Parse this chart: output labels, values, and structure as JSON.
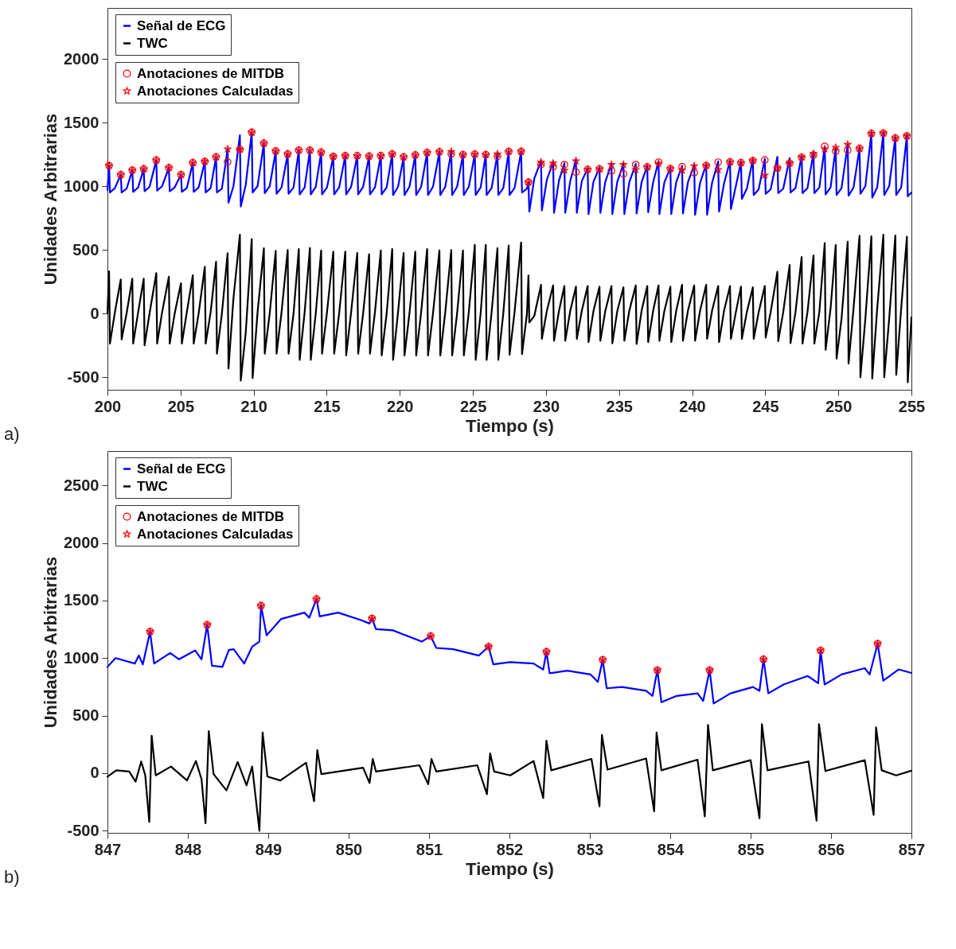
{
  "chart_data": [
    {
      "type": "line",
      "xlabel": "Tiempo (s)",
      "ylabel": "Unidades Arbitrarias",
      "annotations": [
        "a)"
      ],
      "legend": "top left",
      "marker": "none",
      "line_style": "solid",
      "xlim": [
        200,
        255
      ],
      "xticks": [
        200,
        205,
        210,
        215,
        220,
        225,
        230,
        235,
        240,
        245,
        250,
        255
      ],
      "ylim": [
        -600,
        2400
      ],
      "yticks": [
        -500,
        0,
        500,
        1000,
        1500,
        2000
      ],
      "x": [
        200,
        200.11,
        200.17,
        200.51,
        200.91,
        200.97,
        201.31,
        201.7,
        201.76,
        202.1,
        202.48,
        202.54,
        202.88,
        203.34,
        203.4,
        203.74,
        204.2,
        204.26,
        204.6,
        205.03,
        205.09,
        205.43,
        205.84,
        205.9,
        206.24,
        206.66,
        206.72,
        207.06,
        207.43,
        207.49,
        207.83,
        208.22,
        208.28,
        208.62,
        209.06,
        209.12,
        209.46,
        209.87,
        209.93,
        210.27,
        210.7,
        210.76,
        211.1,
        211.51,
        211.57,
        211.91,
        212.33,
        212.39,
        212.73,
        213.09,
        213.15,
        213.49,
        213.85,
        213.91,
        214.25,
        214.62,
        214.68,
        215.02,
        215.45,
        215.51,
        215.85,
        216.27,
        216.33,
        216.67,
        217.09,
        217.15,
        217.49,
        217.9,
        217.96,
        218.3,
        218.7,
        218.76,
        219.1,
        219.48,
        219.54,
        219.88,
        220.26,
        220.32,
        220.66,
        221.06,
        221.12,
        221.46,
        221.87,
        221.93,
        222.27,
        222.71,
        222.77,
        223.11,
        223.52,
        223.58,
        223.92,
        224.32,
        224.38,
        224.72,
        225.13,
        225.19,
        225.53,
        225.88,
        225.94,
        226.28,
        226.68,
        226.74,
        227.08,
        227.45,
        227.51,
        227.85,
        228.3,
        228.36,
        228.7,
        228.8,
        228.86,
        229.2,
        229.66,
        229.72,
        230.06,
        230.49,
        230.55,
        230.89,
        231.26,
        231.32,
        231.66,
        232.05,
        232.11,
        232.45,
        232.85,
        232.91,
        233.25,
        233.66,
        233.72,
        234.06,
        234.48,
        234.54,
        234.88,
        235.3,
        235.36,
        235.7,
        236.14,
        236.2,
        236.54,
        236.93,
        236.99,
        237.33,
        237.7,
        237.76,
        238.1,
        238.51,
        238.57,
        238.91,
        239.31,
        239.37,
        239.71,
        240.14,
        240.2,
        240.54,
        240.96,
        241.02,
        241.36,
        241.78,
        241.84,
        242.18,
        242.59,
        242.65,
        242.99,
        243.34,
        243.4,
        243.74,
        244.15,
        244.21,
        244.55,
        244.97,
        245.03,
        245.37,
        245.83,
        245.89,
        246.23,
        246.67,
        246.73,
        247.07,
        247.49,
        247.55,
        247.89,
        248.3,
        248.36,
        248.7,
        249.07,
        249.13,
        249.47,
        249.82,
        249.88,
        250.22,
        250.64,
        250.7,
        251.04,
        251.45,
        251.51,
        251.85,
        252.26,
        252.32,
        252.66,
        253.08,
        253.14,
        253.48,
        253.9,
        253.96,
        254.3,
        254.69,
        254.75,
        255
      ],
      "series": [
        {
          "name": "Señal de ECG",
          "color": "#0000ff",
          "values": [
            970,
            1161,
            950,
            985,
            1090,
            950,
            980,
            1125,
            955,
            990,
            1135,
            960,
            995,
            1204,
            965,
            1000,
            1145,
            960,
            990,
            1090,
            955,
            985,
            1184,
            955,
            990,
            1194,
            950,
            985,
            1229,
            950,
            980,
            1292,
            870,
            1000,
            1400,
            840,
            1010,
            1423,
            950,
            1000,
            1337,
            945,
            1000,
            1276,
            940,
            990,
            1253,
            940,
            990,
            1282,
            935,
            990,
            1282,
            935,
            995,
            1267,
            935,
            990,
            1233,
            935,
            990,
            1239,
            935,
            995,
            1239,
            935,
            995,
            1235,
            935,
            990,
            1239,
            935,
            990,
            1253,
            930,
            995,
            1229,
            930,
            995,
            1245,
            930,
            995,
            1264,
            930,
            995,
            1270,
            930,
            995,
            1272,
            930,
            995,
            1247,
            930,
            995,
            1251,
            930,
            990,
            1247,
            930,
            985,
            1253,
            930,
            985,
            1272,
            930,
            985,
            1273,
            950,
            980,
            1031,
            800,
            1060,
            1200,
            810,
            1050,
            1190,
            790,
            1045,
            1180,
            790,
            1040,
            1205,
            790,
            1040,
            1140,
            780,
            1035,
            1145,
            790,
            1035,
            1175,
            780,
            1035,
            1175,
            780,
            1030,
            1175,
            785,
            1030,
            1160,
            795,
            1030,
            1195,
            780,
            1030,
            1145,
            780,
            1030,
            1160,
            785,
            1030,
            1165,
            775,
            1025,
            1170,
            775,
            1025,
            1195,
            800,
            1020,
            1200,
            820,
            1000,
            1190,
            900,
            980,
            1210,
            930,
            975,
            1215,
            940,
            975,
            1230,
            945,
            980,
            1220,
            950,
            985,
            1240,
            945,
            985,
            1265,
            945,
            990,
            1312,
            935,
            990,
            1304,
            930,
            985,
            1327,
            925,
            990,
            1300,
            940,
            1000,
            1420,
            910,
            990,
            1420,
            930,
            1000,
            1385,
            930,
            990,
            1400,
            920,
            950
          ]
        },
        {
          "name": "TWC",
          "color": "#000000",
          "values": [
            0,
            331,
            -237,
            10,
            267,
            -204,
            0,
            273,
            -237,
            10,
            273,
            -251,
            0,
            316,
            -237,
            10,
            288,
            -237,
            0,
            237,
            -237,
            10,
            300,
            -237,
            0,
            367,
            -237,
            10,
            406,
            -316,
            0,
            473,
            -433,
            120,
            618,
            -528,
            -150,
            584,
            -508,
            10,
            512,
            -316,
            0,
            492,
            -316,
            10,
            498,
            -316,
            0,
            506,
            -365,
            10,
            514,
            -365,
            0,
            494,
            -316,
            10,
            486,
            -316,
            0,
            486,
            -330,
            10,
            475,
            -316,
            0,
            465,
            -316,
            10,
            494,
            -330,
            0,
            506,
            -365,
            10,
            475,
            -330,
            0,
            486,
            -330,
            10,
            506,
            -330,
            0,
            494,
            -330,
            10,
            498,
            -330,
            0,
            494,
            -330,
            10,
            539,
            -365,
            0,
            539,
            -365,
            10,
            512,
            -365,
            0,
            533,
            -325,
            10,
            557,
            -320,
            0,
            298,
            -71,
            -20,
            224,
            -200,
            20,
            220,
            -215,
            20,
            215,
            -215,
            20,
            210,
            -200,
            20,
            215,
            -225,
            20,
            210,
            -215,
            20,
            215,
            -235,
            20,
            205,
            -215,
            20,
            220,
            -240,
            20,
            215,
            -225,
            20,
            220,
            -215,
            20,
            210,
            -225,
            20,
            225,
            -215,
            20,
            220,
            -215,
            20,
            225,
            -200,
            20,
            215,
            -225,
            20,
            215,
            -200,
            10,
            210,
            -200,
            10,
            205,
            -200,
            10,
            215,
            -190,
            10,
            327,
            -218,
            10,
            380,
            -233,
            10,
            443,
            -237,
            10,
            455,
            -237,
            10,
            553,
            -286,
            40,
            537,
            -355,
            -40,
            563,
            -394,
            40,
            610,
            -502,
            -40,
            606,
            -512,
            40,
            618,
            -502,
            -40,
            612,
            -482,
            40,
            602,
            -541,
            -30
          ]
        },
        {
          "name": "Anotaciones de MITDB",
          "type": "scatter",
          "marker": "circle",
          "color": "#ff0000",
          "x": [
            200.11,
            200.91,
            201.7,
            202.48,
            203.34,
            204.2,
            205.03,
            205.84,
            206.66,
            207.43,
            208.22,
            209.06,
            209.87,
            210.7,
            211.51,
            212.33,
            213.09,
            213.85,
            214.62,
            215.45,
            216.27,
            217.09,
            217.9,
            218.7,
            219.48,
            220.26,
            221.06,
            221.87,
            222.71,
            223.52,
            224.32,
            225.13,
            225.88,
            226.68,
            227.45,
            228.3,
            228.8,
            229.66,
            230.49,
            231.26,
            232.05,
            232.85,
            233.66,
            234.48,
            235.3,
            236.14,
            236.93,
            237.7,
            238.51,
            239.31,
            240.14,
            240.96,
            241.78,
            242.59,
            243.34,
            244.15,
            244.97,
            245.83,
            246.67,
            247.49,
            248.3,
            249.07,
            249.82,
            250.64,
            251.45,
            252.26,
            253.08,
            253.9,
            254.69
          ],
          "values": [
            1161,
            1090,
            1125,
            1135,
            1204,
            1145,
            1090,
            1184,
            1194,
            1229,
            1190,
            1288,
            1423,
            1337,
            1276,
            1253,
            1282,
            1282,
            1267,
            1233,
            1239,
            1239,
            1235,
            1239,
            1253,
            1229,
            1245,
            1264,
            1270,
            1253,
            1247,
            1251,
            1247,
            1233,
            1272,
            1273,
            1031,
            1169,
            1153,
            1169,
            1110,
            1131,
            1135,
            1120,
            1096,
            1169,
            1151,
            1188,
            1137,
            1153,
            1106,
            1161,
            1188,
            1190,
            1184,
            1200,
            1206,
            1141,
            1180,
            1227,
            1243,
            1312,
            1276,
            1282,
            1296,
            1414,
            1416,
            1378,
            1394
          ]
        },
        {
          "name": "Anotaciones Calculadas",
          "type": "scatter",
          "marker": "star",
          "color": "#ff0000",
          "x": [
            200.11,
            200.91,
            201.7,
            202.48,
            203.34,
            204.2,
            205.03,
            205.84,
            206.66,
            207.43,
            208.22,
            209.06,
            209.87,
            210.7,
            211.51,
            212.33,
            213.09,
            213.85,
            214.62,
            215.45,
            216.27,
            217.09,
            217.9,
            218.7,
            219.48,
            220.26,
            221.06,
            221.87,
            222.71,
            223.52,
            224.32,
            225.13,
            225.88,
            226.68,
            227.45,
            228.3,
            228.8,
            229.66,
            230.49,
            231.26,
            232.05,
            232.85,
            233.66,
            234.48,
            235.3,
            236.14,
            236.93,
            237.7,
            238.51,
            239.31,
            240.14,
            240.96,
            241.78,
            242.59,
            243.34,
            244.15,
            244.97,
            245.83,
            246.67,
            247.49,
            248.3,
            249.07,
            249.82,
            250.64,
            251.45,
            252.26,
            253.08,
            253.9,
            254.69
          ],
          "values": [
            1161,
            1090,
            1125,
            1135,
            1204,
            1145,
            1090,
            1184,
            1194,
            1229,
            1292,
            1288,
            1423,
            1337,
            1276,
            1253,
            1282,
            1282,
            1267,
            1233,
            1239,
            1239,
            1235,
            1239,
            1253,
            1229,
            1245,
            1264,
            1270,
            1272,
            1247,
            1251,
            1247,
            1253,
            1272,
            1273,
            1031,
            1188,
            1180,
            1125,
            1198,
            1131,
            1135,
            1169,
            1169,
            1129,
            1151,
            1178,
            1137,
            1125,
            1159,
            1161,
            1129,
            1190,
            1184,
            1200,
            1086,
            1141,
            1180,
            1227,
            1255,
            1292,
            1304,
            1327,
            1296,
            1414,
            1416,
            1378,
            1394
          ]
        }
      ]
    },
    {
      "type": "line",
      "xlabel": "Tiempo (s)",
      "ylabel": "Unidades Arbitrarias",
      "annotations": [
        "b)"
      ],
      "legend": "top left",
      "marker": "none",
      "line_style": "solid",
      "xlim": [
        847,
        857
      ],
      "xticks": [
        847,
        848,
        849,
        850,
        851,
        852,
        853,
        854,
        855,
        856,
        857
      ],
      "ylim": [
        -520,
        2800
      ],
      "yticks": [
        -500,
        0,
        500,
        1000,
        1500,
        2000,
        2500
      ],
      "series": [
        {
          "name": "Señal de ECG",
          "color": "#0000ff",
          "x": [
            847,
            847.1,
            847.34,
            847.39,
            847.44,
            847.53,
            847.58,
            847.78,
            847.89,
            848.09,
            848.17,
            848.24,
            848.3,
            848.43,
            848.51,
            848.57,
            848.7,
            848.8,
            848.89,
            848.91,
            848.98,
            849.16,
            849.45,
            849.51,
            849.6,
            849.64,
            849.87,
            850.16,
            850.26,
            850.29,
            850.34,
            850.55,
            850.91,
            851.02,
            851.09,
            851.3,
            851.62,
            851.74,
            851.8,
            852.01,
            852.3,
            852.42,
            852.46,
            852.5,
            852.72,
            853.01,
            853.1,
            853.16,
            853.21,
            853.4,
            853.7,
            853.78,
            853.84,
            853.89,
            854.08,
            854.34,
            854.41,
            854.49,
            854.54,
            854.75,
            855.03,
            855.11,
            855.16,
            855.22,
            855.41,
            855.71,
            855.84,
            855.87,
            855.92,
            856.13,
            856.42,
            856.48,
            856.58,
            856.65,
            856.84,
            857
          ],
          "values": [
            923,
            1000,
            952,
            1022,
            945,
            1230,
            952,
            1044,
            989,
            1066,
            989,
            1289,
            934,
            923,
            1070,
            1077,
            952,
            1099,
            1143,
            1456,
            1197,
            1340,
            1395,
            1351,
            1513,
            1362,
            1395,
            1329,
            1300,
            1344,
            1252,
            1241,
            1143,
            1191,
            1088,
            1077,
            1022,
            1099,
            945,
            965,
            952,
            900,
            1055,
            868,
            890,
            857,
            792,
            985,
            737,
            748,
            715,
            671,
            895,
            616,
            671,
            693,
            627,
            895,
            605,
            693,
            748,
            715,
            989,
            693,
            770,
            844,
            781,
            1066,
            770,
            857,
            912,
            857,
            1125,
            803,
            901,
            870
          ]
        },
        {
          "name": "TWC",
          "color": "#000000",
          "x": [
            847,
            847.11,
            847.27,
            847.35,
            847.42,
            847.47,
            847.52,
            847.55,
            847.6,
            847.79,
            847.99,
            848.1,
            848.17,
            848.22,
            848.26,
            848.32,
            848.48,
            848.62,
            848.73,
            848.8,
            848.89,
            848.93,
            848.99,
            849.15,
            849.47,
            849.57,
            849.61,
            849.66,
            850.18,
            850.26,
            850.3,
            850.34,
            850.88,
            850.99,
            851.03,
            851.09,
            851.6,
            851.72,
            851.76,
            851.81,
            852.01,
            852.3,
            852.42,
            852.46,
            852.52,
            853.02,
            853.12,
            853.15,
            853.22,
            853.7,
            853.8,
            853.83,
            853.89,
            854.34,
            854.43,
            854.47,
            854.53,
            855,
            855.11,
            855.14,
            855.21,
            855.72,
            855.82,
            855.85,
            855.93,
            856.42,
            856.53,
            856.56,
            856.63,
            856.81,
            857
          ],
          "values": [
            -31,
            24,
            13,
            -75,
            101,
            -20,
            -425,
            325,
            -20,
            57,
            -64,
            105,
            -53,
            -436,
            364,
            -9,
            -151,
            96,
            -107,
            57,
            -502,
            353,
            -31,
            -64,
            90,
            -245,
            199,
            -9,
            46,
            -86,
            123,
            13,
            68,
            -97,
            123,
            13,
            68,
            -184,
            171,
            13,
            -20,
            105,
            -217,
            281,
            24,
            123,
            -289,
            331,
            30,
            127,
            -333,
            353,
            24,
            116,
            -377,
            419,
            24,
            112,
            -393,
            426,
            24,
            101,
            -414,
            426,
            18,
            112,
            -364,
            397,
            24,
            -20,
            20
          ]
        },
        {
          "name": "Anotaciones de MITDB",
          "type": "scatter",
          "marker": "circle",
          "color": "#ff0000",
          "x": [
            847.53,
            848.24,
            848.91,
            849.6,
            850.29,
            851.02,
            851.74,
            852.46,
            853.16,
            853.84,
            854.49,
            855.16,
            855.87,
            856.58
          ],
          "values": [
            1230,
            1289,
            1456,
            1513,
            1344,
            1191,
            1099,
            1055,
            985,
            895,
            895,
            989,
            1066,
            1125
          ]
        },
        {
          "name": "Anotaciones Calculadas",
          "type": "scatter",
          "marker": "star",
          "color": "#ff0000",
          "x": [
            847.53,
            848.24,
            848.91,
            849.6,
            850.29,
            851.02,
            851.74,
            852.46,
            853.16,
            853.84,
            854.49,
            855.16,
            855.87,
            856.58
          ],
          "values": [
            1230,
            1289,
            1456,
            1513,
            1344,
            1191,
            1099,
            1055,
            985,
            895,
            895,
            989,
            1066,
            1125
          ]
        }
      ]
    }
  ]
}
